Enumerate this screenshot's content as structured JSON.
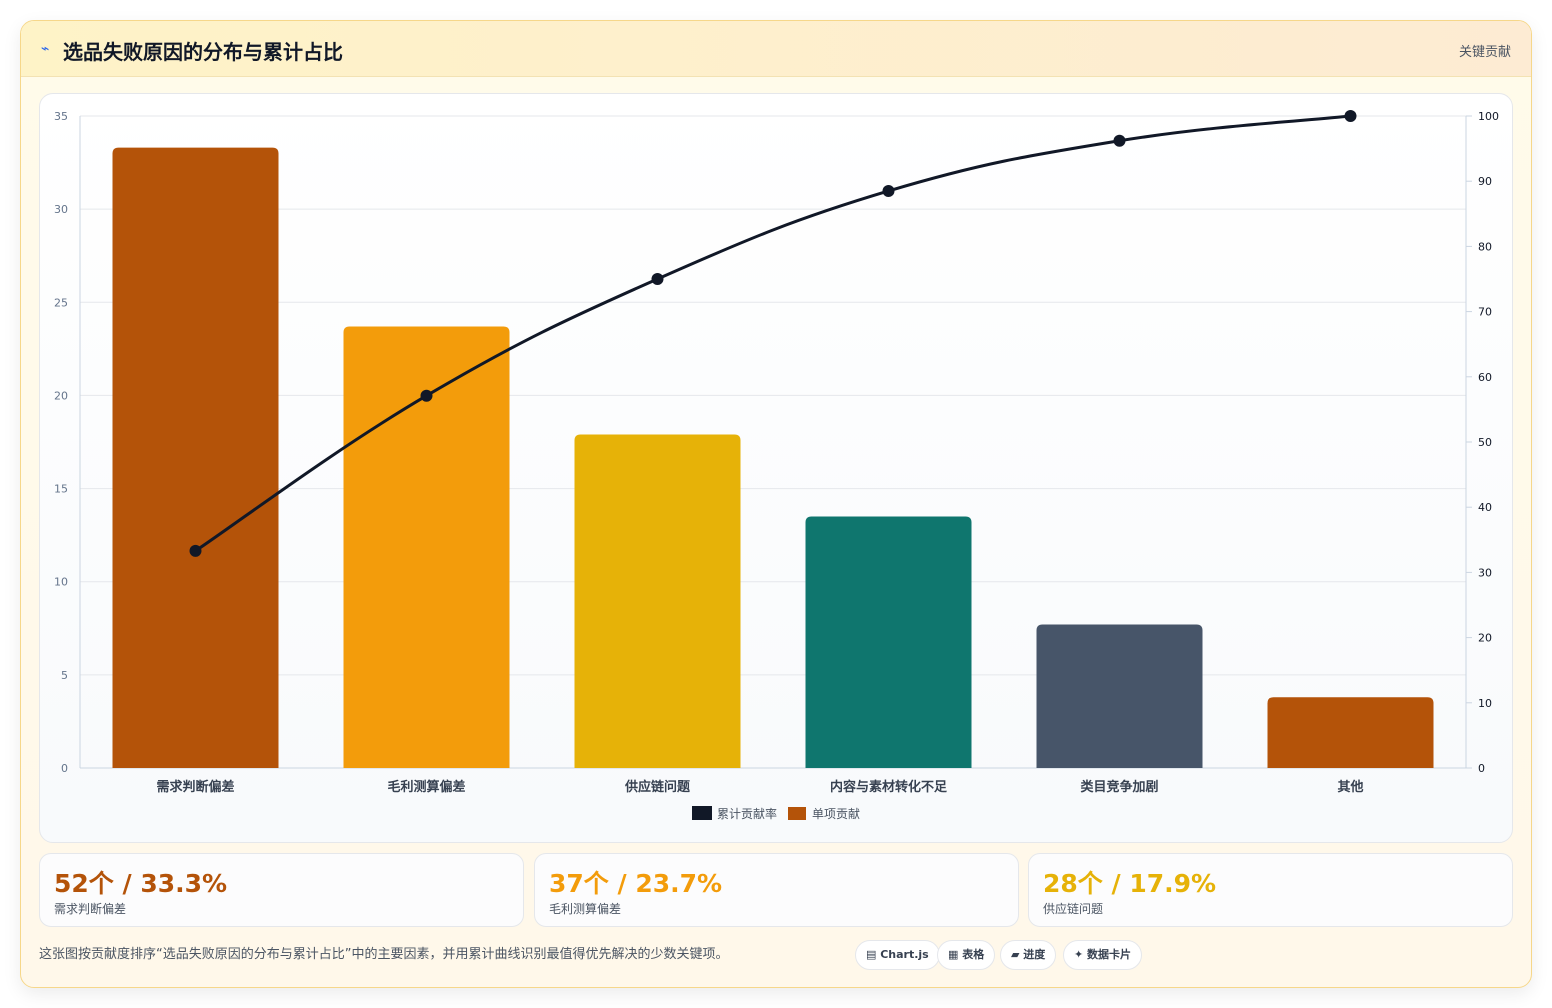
{
  "header": {
    "icon": "lightning-icon",
    "title": "选品失败原因的分布与累计占比",
    "tag": "关键贡献"
  },
  "chart_data": {
    "type": "bar",
    "categories": [
      "需求判断偏差",
      "毛利测算偏差",
      "供应链问题",
      "内容与素材转化不足",
      "类目竞争加剧",
      "其他"
    ],
    "series": [
      {
        "name": "单项贡献",
        "type": "bar",
        "axis": "left",
        "values": [
          33.3,
          23.7,
          17.9,
          13.5,
          7.7,
          3.8
        ],
        "colors": [
          "#b45309",
          "#f39c0b",
          "#e6b208",
          "#0f766e",
          "#475569",
          "#b45309"
        ]
      },
      {
        "name": "累计贡献率",
        "type": "line",
        "axis": "right",
        "values": [
          33.3,
          57.1,
          75.0,
          88.5,
          96.2,
          100.0
        ],
        "color": "#111827"
      }
    ],
    "y_left": {
      "min": 0,
      "max": 35,
      "ticks": [
        0,
        5,
        10,
        15,
        20,
        25,
        30,
        35
      ]
    },
    "y_right": {
      "min": 0,
      "max": 100,
      "ticks": [
        0,
        10,
        20,
        30,
        40,
        50,
        60,
        70,
        80,
        90,
        100
      ]
    },
    "legend": {
      "position": "bottom",
      "entries": [
        "累计贡献率",
        "单项贡献"
      ]
    },
    "grid": true
  },
  "stats": [
    {
      "value": "52个 / 33.3%",
      "label": "需求判断偏差",
      "color": "#b45309"
    },
    {
      "value": "37个 / 23.7%",
      "label": "毛利测算偏差",
      "color": "#f39c0b"
    },
    {
      "value": "28个 / 17.9%",
      "label": "供应链问题",
      "color": "#e6b208"
    }
  ],
  "footer": {
    "note": "这张图按贡献度排序“选品失败原因的分布与累计占比”中的主要因素，并用累计曲线识别最值得优先解决的少数关键项。",
    "chips": [
      {
        "icon": "chart-icon",
        "label": "▤ Chart.js"
      },
      {
        "icon": "table-icon",
        "label": "▦ 表格"
      },
      {
        "icon": "progress-icon",
        "label": "▰ 进度"
      },
      {
        "icon": "sparkle-icon",
        "label": "✦ 数据卡片"
      }
    ]
  }
}
